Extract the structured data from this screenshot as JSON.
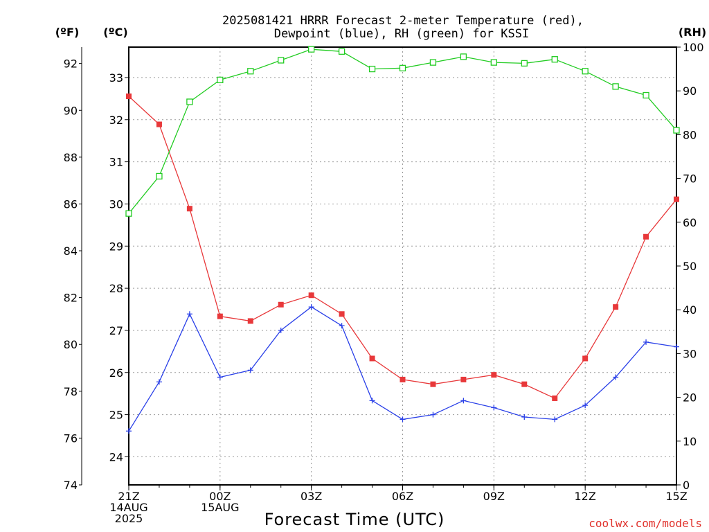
{
  "chart_data": {
    "type": "line",
    "title_line1": "2025081421 HRRR Forecast 2-meter Temperature (red),",
    "title_line2": "Dewpoint (blue), RH (green) for KSSI",
    "left_outer_unit": "(ºF)",
    "left_inner_unit": "(ºC)",
    "right_unit": "(RH)",
    "xlabel": "Forecast Time (UTC)",
    "credit": "coolwx.com/models",
    "x_ticks": [
      {
        "index": 0,
        "lines": [
          "21Z",
          "14AUG",
          "2025"
        ]
      },
      {
        "index": 3,
        "lines": [
          "00Z",
          "15AUG"
        ]
      },
      {
        "index": 6,
        "lines": [
          "03Z"
        ]
      },
      {
        "index": 9,
        "lines": [
          "06Z"
        ]
      },
      {
        "index": 12,
        "lines": [
          "09Z"
        ]
      },
      {
        "index": 15,
        "lines": [
          "12Z"
        ]
      },
      {
        "index": 18,
        "lines": [
          "15Z"
        ]
      }
    ],
    "x_range": [
      0,
      18
    ],
    "fahrenheit_ticks": [
      74,
      76,
      78,
      80,
      82,
      84,
      86,
      88,
      90,
      92
    ],
    "celsius_ticks": [
      24,
      25,
      26,
      27,
      28,
      29,
      30,
      31,
      32,
      33
    ],
    "rh_ticks": [
      0,
      10,
      20,
      30,
      40,
      50,
      60,
      70,
      80,
      90,
      100
    ],
    "temp_f_range": [
      74,
      92.7
    ],
    "rh_range": [
      0,
      100
    ],
    "series": [
      {
        "name": "Temperature",
        "color": "#e8383a",
        "marker": "filled-square",
        "axis": "fahrenheit",
        "values": [
          90.6,
          89.4,
          85.8,
          81.2,
          81.0,
          81.7,
          82.1,
          81.3,
          79.4,
          78.5,
          78.3,
          78.5,
          78.7,
          78.3,
          77.7,
          79.4,
          81.6,
          84.6,
          86.2
        ]
      },
      {
        "name": "Dewpoint",
        "color": "#2a40e8",
        "marker": "plus",
        "axis": "fahrenheit",
        "values": [
          76.3,
          78.4,
          81.3,
          78.6,
          78.9,
          80.6,
          81.6,
          80.8,
          77.6,
          76.8,
          77.0,
          77.6,
          77.3,
          76.9,
          76.8,
          77.4,
          78.6,
          80.1,
          79.9
        ]
      },
      {
        "name": "RH",
        "color": "#22cc22",
        "marker": "open-square",
        "axis": "rh",
        "values": [
          62,
          70.5,
          87.5,
          92.5,
          94.5,
          97,
          99.5,
          99,
          95,
          95.2,
          96.5,
          97.8,
          96.5,
          96.3,
          97.2,
          94.5,
          91,
          89,
          81
        ]
      }
    ],
    "grid": true
  }
}
